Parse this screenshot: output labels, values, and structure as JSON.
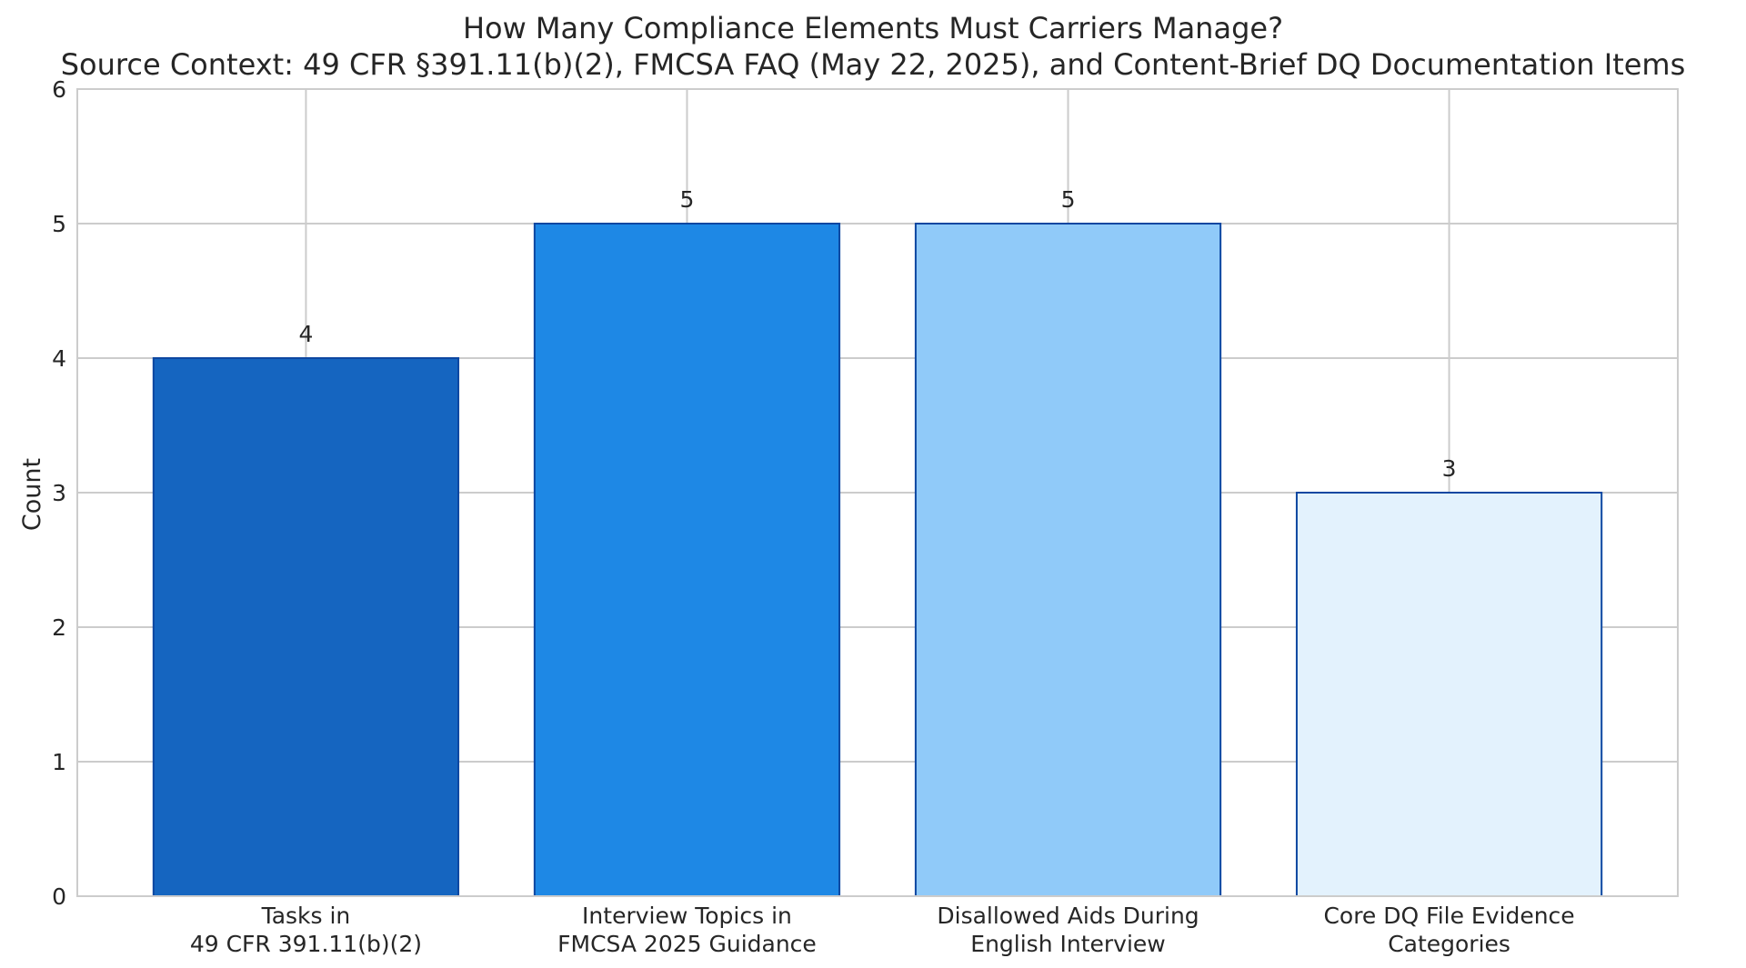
{
  "chart_data": {
    "type": "bar",
    "title": "How Many Compliance Elements Must Carriers Manage?",
    "subtitle": "Source Context: 49 CFR §391.11(b)(2), FMCSA FAQ (May 22, 2025), and Content-Brief DQ Documentation Items",
    "xlabel": "",
    "ylabel": "Count",
    "ylim": [
      0,
      6
    ],
    "yticks": [
      "0",
      "1",
      "2",
      "3",
      "4",
      "5",
      "6"
    ],
    "categories": [
      [
        "Tasks in",
        "49 CFR 391.11(b)(2)"
      ],
      [
        "Interview Topics in",
        "FMCSA 2025 Guidance"
      ],
      [
        "Disallowed Aids During",
        "English Interview"
      ],
      [
        "Core DQ File Evidence",
        "Categories"
      ]
    ],
    "values": [
      4,
      5,
      5,
      3
    ],
    "value_labels": [
      "4",
      "5",
      "5",
      "3"
    ],
    "bar_colors": [
      "#1565c0",
      "#1e88e5",
      "#90caf9",
      "#e3f2fd"
    ],
    "bar_edge_color": "#0d47a1",
    "grid": true,
    "grid_color": "#cccccc",
    "frame_color": "#cccccc",
    "text_color": "#262626"
  }
}
